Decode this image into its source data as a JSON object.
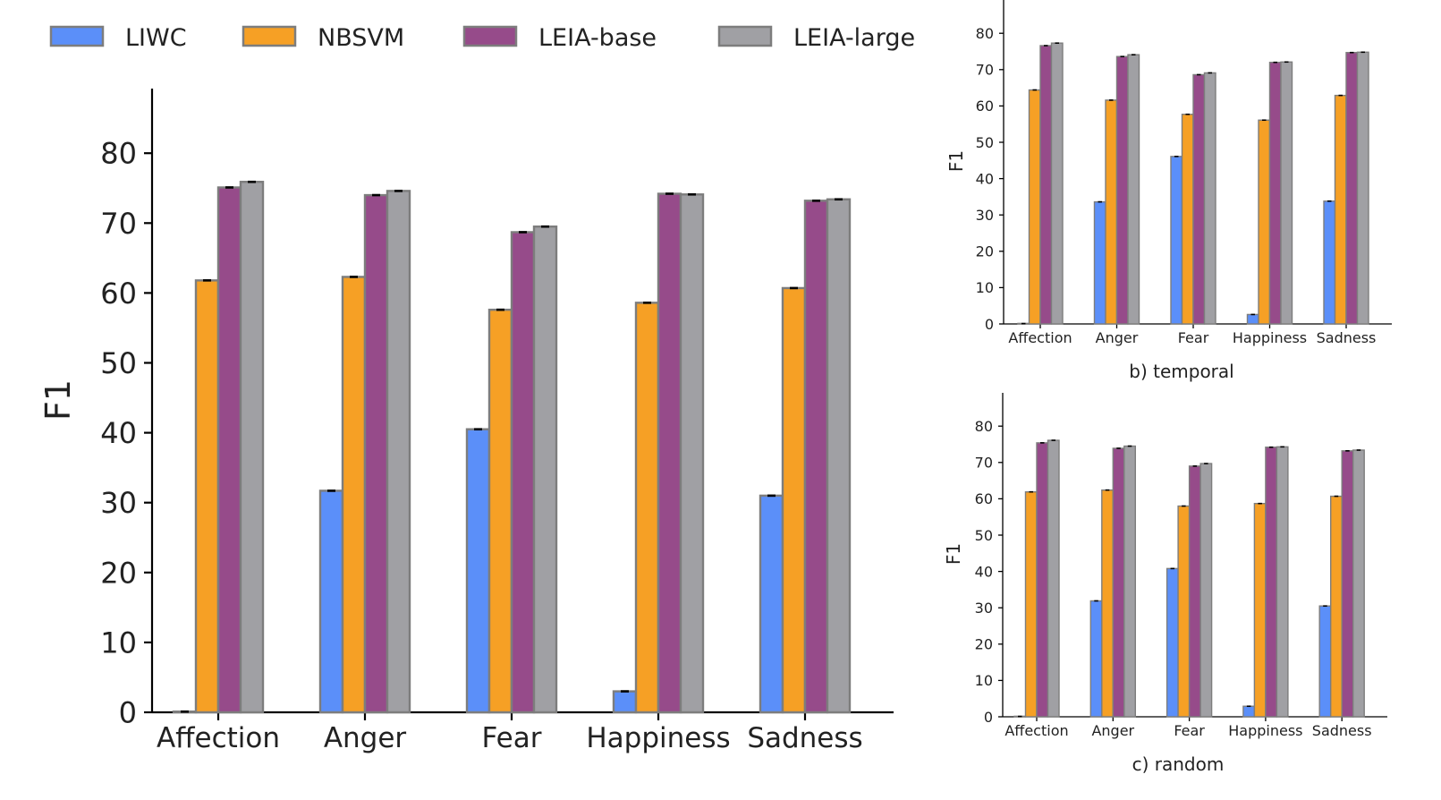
{
  "legend": {
    "items": [
      {
        "label": "LIWC",
        "color": "#5b8ff9"
      },
      {
        "label": "NBSVM",
        "color": "#f6a025"
      },
      {
        "label": "LEIA-base",
        "color": "#964b8a"
      },
      {
        "label": "LEIA-large",
        "color": "#a0a0a4"
      }
    ]
  },
  "chart_data": [
    {
      "id": "main",
      "type": "bar",
      "title": "",
      "xlabel": "",
      "ylabel": "F1",
      "ylim": [
        0,
        88
      ],
      "yticks": [
        "0",
        "10",
        "20",
        "30",
        "40",
        "50",
        "60",
        "70",
        "80"
      ],
      "categories": [
        "Affection",
        "Anger",
        "Fear",
        "Happiness",
        "Sadness"
      ],
      "series": [
        {
          "name": "LIWC",
          "values": [
            0.1,
            31.7,
            40.5,
            3.0,
            31.0
          ]
        },
        {
          "name": "NBSVM",
          "values": [
            61.8,
            62.3,
            57.6,
            58.6,
            60.7
          ]
        },
        {
          "name": "LEIA-base",
          "values": [
            75.1,
            74.0,
            68.7,
            74.2,
            73.2
          ]
        },
        {
          "name": "LEIA-large",
          "values": [
            75.9,
            74.6,
            69.5,
            74.1,
            73.4
          ]
        }
      ]
    },
    {
      "id": "temporal",
      "type": "bar",
      "title": "b) temporal",
      "xlabel": "",
      "ylabel": "F1",
      "ylim": [
        0,
        88
      ],
      "yticks": [
        "0",
        "10",
        "20",
        "30",
        "40",
        "50",
        "60",
        "70",
        "80"
      ],
      "categories": [
        "Affection",
        "Anger",
        "Fear",
        "Happiness",
        "Sadness"
      ],
      "series": [
        {
          "name": "LIWC",
          "values": [
            0.1,
            33.6,
            46.1,
            2.6,
            33.8
          ]
        },
        {
          "name": "NBSVM",
          "values": [
            64.4,
            61.6,
            57.7,
            56.1,
            62.9
          ]
        },
        {
          "name": "LEIA-base",
          "values": [
            76.6,
            73.6,
            68.6,
            72.0,
            74.7
          ]
        },
        {
          "name": "LEIA-large",
          "values": [
            77.3,
            74.1,
            69.1,
            72.1,
            74.8
          ]
        }
      ]
    },
    {
      "id": "random",
      "type": "bar",
      "title": "c) random",
      "xlabel": "",
      "ylabel": "F1",
      "ylim": [
        0,
        88
      ],
      "yticks": [
        "0",
        "10",
        "20",
        "30",
        "40",
        "50",
        "60",
        "70",
        "80"
      ],
      "categories": [
        "Affection",
        "Anger",
        "Fear",
        "Happiness",
        "Sadness"
      ],
      "series": [
        {
          "name": "LIWC",
          "values": [
            0.1,
            31.9,
            40.8,
            2.9,
            30.5
          ]
        },
        {
          "name": "NBSVM",
          "values": [
            61.9,
            62.4,
            58.0,
            58.7,
            60.7
          ]
        },
        {
          "name": "LEIA-base",
          "values": [
            75.4,
            73.9,
            69.0,
            74.2,
            73.2
          ]
        },
        {
          "name": "LEIA-large",
          "values": [
            76.1,
            74.5,
            69.7,
            74.3,
            73.4
          ]
        }
      ]
    }
  ]
}
